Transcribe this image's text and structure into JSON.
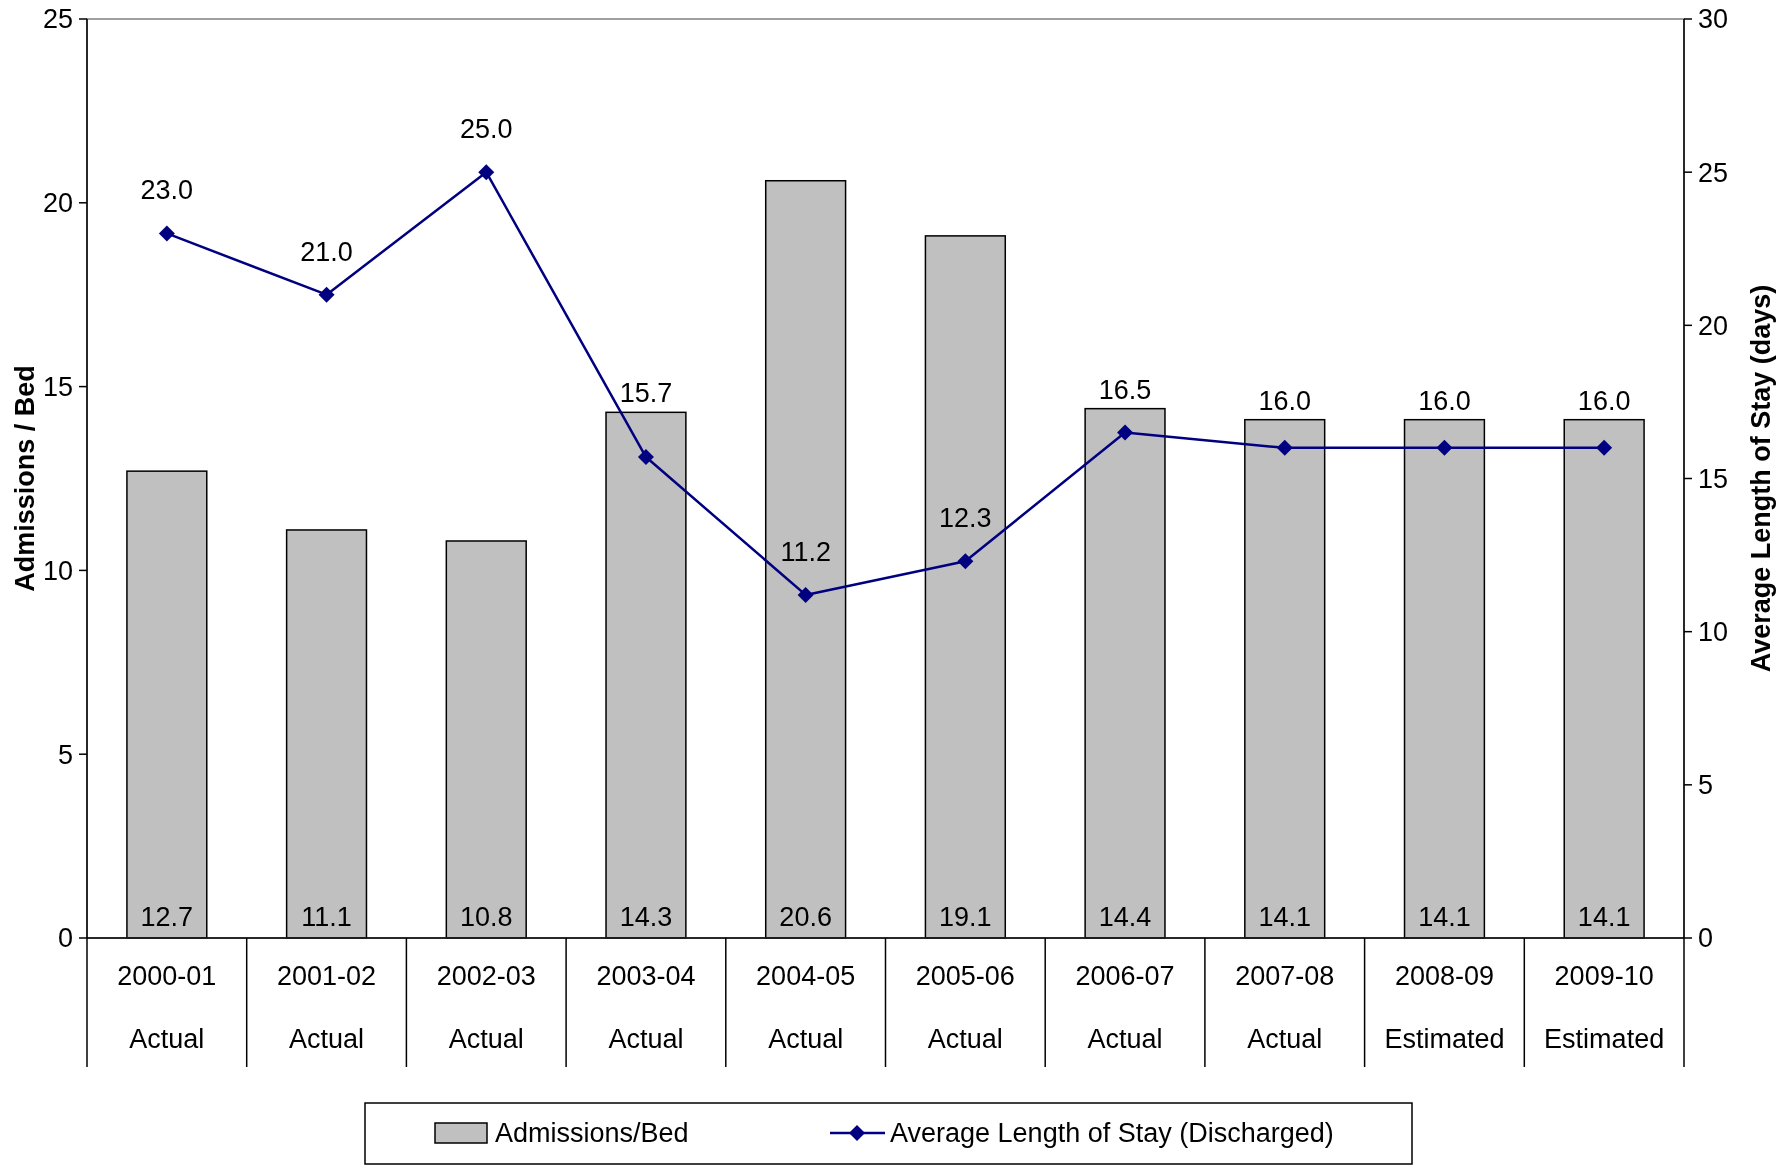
{
  "chart_data": {
    "type": "bar",
    "categories": [
      "2000-01\nActual",
      "2001-02\nActual",
      "2002-03\nActual",
      "2003-04\nActual",
      "2004-05\nActual",
      "2005-06\nActual",
      "2006-07\nActual",
      "2007-08\nActual",
      "2008-09\nEstimated",
      "2009-10\nEstimated"
    ],
    "series": [
      {
        "name": "Admissions/Bed",
        "color": "#c0c0c0",
        "values": [
          12.7,
          11.1,
          10.8,
          14.3,
          20.6,
          19.1,
          14.4,
          14.1,
          14.1,
          14.1
        ],
        "value_labels": [
          "12.7",
          "11.1",
          "10.8",
          "14.3",
          "20.6",
          "19.1",
          "14.4",
          "14.1",
          "14.1",
          "14.1"
        ]
      },
      {
        "name": "Average Length of Stay (Discharged)",
        "type": "line",
        "axis": "y2",
        "color": "#000080",
        "values": [
          23.0,
          21.0,
          25.0,
          15.7,
          11.2,
          12.3,
          16.5,
          16.0,
          16.0,
          16.0
        ],
        "value_labels": [
          "23.0",
          "21.0",
          "25.0",
          "15.7",
          "11.2",
          "12.3",
          "16.5",
          "16.0",
          "16.0",
          "16.0"
        ]
      }
    ],
    "ylabel": "Admissions / Bed",
    "y2label": "Average Length of Stay (days)",
    "ylim": [
      0,
      25
    ],
    "yticks": [
      0,
      5,
      10,
      15,
      20,
      25
    ],
    "y2lim": [
      0,
      30
    ],
    "y2ticks": [
      0,
      5,
      10,
      15,
      20,
      25,
      30
    ],
    "legend": "bottom",
    "marker": "diamond",
    "grid": false
  }
}
